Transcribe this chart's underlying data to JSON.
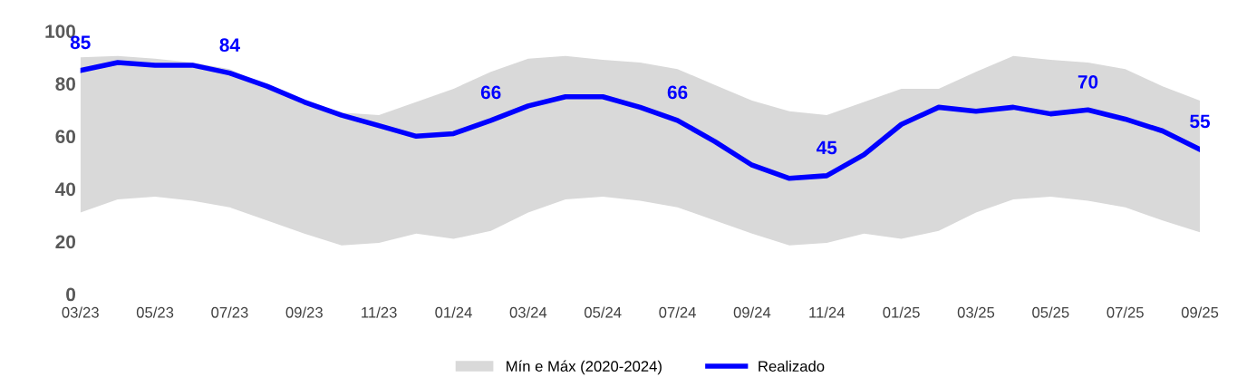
{
  "chart_data": {
    "type": "line",
    "categories": [
      "03/23",
      null,
      "05/23",
      null,
      "07/23",
      null,
      "09/23",
      null,
      "11/23",
      null,
      "01/24",
      null,
      "03/24",
      null,
      "05/24",
      null,
      "07/24",
      null,
      "09/24",
      null,
      "11/24",
      null,
      "01/25",
      null,
      "03/25",
      null,
      "05/25",
      null,
      "07/25",
      null,
      "09/25"
    ],
    "series": [
      {
        "name": "Mín e Máx (2020-2024)",
        "color": "#d9d9d9",
        "values": [
          null,
          null,
          null,
          null,
          null,
          null,
          null,
          null,
          null,
          null,
          null,
          null,
          null,
          null,
          null,
          null,
          null,
          null,
          null,
          null,
          null,
          null,
          null,
          null,
          null,
          null,
          null,
          null,
          null,
          null,
          null
        ],
        "lower": [
          31,
          36,
          37,
          35.5,
          33,
          28,
          23,
          18.5,
          19.5,
          23,
          21,
          24,
          31,
          36,
          37,
          35.5,
          33,
          28,
          23,
          18.5,
          19.5,
          23,
          21,
          24,
          31,
          36,
          37,
          35.5,
          33,
          28,
          23.5
        ],
        "upper": [
          90,
          90.5,
          89.5,
          88,
          85.5,
          79,
          73,
          69,
          68,
          73,
          78,
          84.5,
          89.5,
          90.5,
          89,
          88,
          85.5,
          79.5,
          73.5,
          69.5,
          68,
          73,
          78,
          78,
          84.5,
          90.5,
          89,
          88,
          85.5,
          79,
          73.5
        ]
      },
      {
        "name": "Realizado",
        "type": "line",
        "color": "#0000ff",
        "values": [
          85,
          88,
          87,
          87,
          84,
          79,
          73,
          68,
          64,
          60,
          61,
          66,
          71.5,
          75,
          75,
          71,
          66,
          58,
          49,
          44,
          45,
          53,
          64.5,
          71,
          69.5,
          71,
          68.5,
          70,
          66.5,
          62,
          55
        ],
        "value_labels": [
          "85",
          null,
          null,
          null,
          "84",
          null,
          null,
          null,
          null,
          null,
          null,
          "66",
          null,
          null,
          null,
          null,
          "66",
          null,
          null,
          null,
          "45",
          null,
          null,
          null,
          null,
          null,
          null,
          "70",
          null,
          null,
          "55"
        ]
      }
    ],
    "ylim": [
      0,
      100
    ],
    "yticks": [
      0,
      20,
      40,
      60,
      80,
      100
    ],
    "grid": false,
    "legend": "bottom",
    "marker": "none",
    "line_style": "solid"
  }
}
